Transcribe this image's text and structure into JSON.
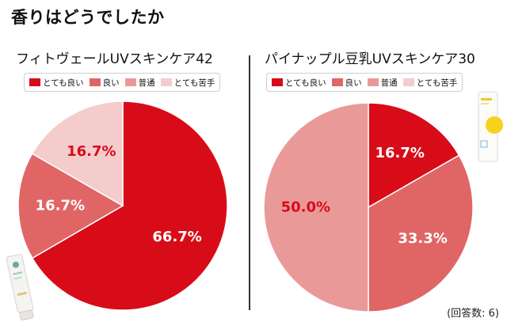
{
  "page": {
    "title": "香りはどうでしたか",
    "count_note": "(回答数: 6)"
  },
  "legend": [
    {
      "label": "とても良い",
      "color": "#d80c18"
    },
    {
      "label": "良い",
      "color": "#e06666"
    },
    {
      "label": "普通",
      "color": "#ea9999"
    },
    {
      "label": "とても苦手",
      "color": "#f4cccc"
    }
  ],
  "chart_data": [
    {
      "type": "pie",
      "title": "フィトヴェールUVスキンケア42",
      "slices": [
        {
          "name": "とても良い",
          "value": 66.7,
          "label": "66.7%",
          "color": "#d80c18",
          "label_color": "#ffffff"
        },
        {
          "name": "良い",
          "value": 16.7,
          "label": "16.7%",
          "color": "#e06666",
          "label_color": "#ffffff"
        },
        {
          "name": "普通",
          "value": 0,
          "label": "",
          "color": "#ea9999",
          "label_color": "#ffffff"
        },
        {
          "name": "とても苦手",
          "value": 16.7,
          "label": "16.7%",
          "color": "#f4cccc",
          "label_color": "#d80c18"
        }
      ],
      "legend_placement": "top"
    },
    {
      "type": "pie",
      "title": "パイナップル豆乳UVスキンケア30",
      "slices": [
        {
          "name": "とても良い",
          "value": 16.7,
          "label": "16.7%",
          "color": "#d80c18",
          "label_color": "#ffffff"
        },
        {
          "name": "良い",
          "value": 33.3,
          "label": "33.3%",
          "color": "#e06666",
          "label_color": "#ffffff"
        },
        {
          "name": "普通",
          "value": 50.0,
          "label": "50.0%",
          "color": "#ea9999",
          "label_color": "#d80c18"
        },
        {
          "name": "とても苦手",
          "value": 0,
          "label": "",
          "color": "#f4cccc",
          "label_color": "#d80c18"
        }
      ],
      "legend_placement": "top"
    }
  ]
}
